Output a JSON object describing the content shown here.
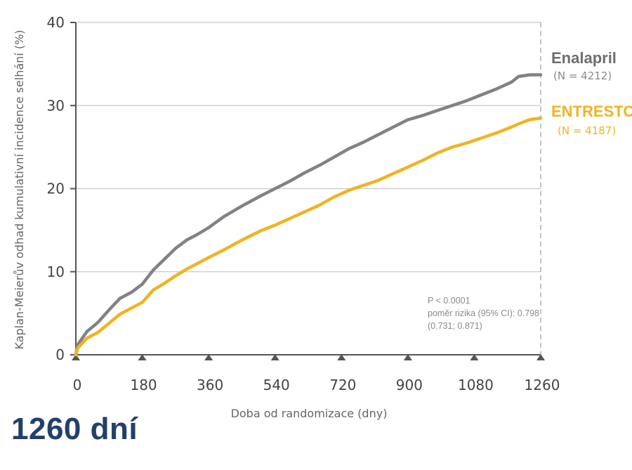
{
  "chart_data": {
    "type": "line",
    "xlabel": "Doba od randomizace (dny)",
    "ylabel": "Kaplan-Meierův odhad kumulativní incidence selhání (%)",
    "xlim": [
      0,
      1260
    ],
    "ylim": [
      0,
      40
    ],
    "x_ticks": [
      "0",
      "180",
      "360",
      "540",
      "720",
      "900",
      "1080",
      "1260"
    ],
    "y_ticks": [
      "0",
      "10",
      "20",
      "30",
      "40"
    ],
    "grid": "horizontal",
    "legend_placement": "right, inline labels at line ends",
    "series": [
      {
        "name": "Enalapril",
        "n_label": "(N = 4212)",
        "color": "#808285",
        "x": [
          0,
          5,
          30,
          60,
          90,
          120,
          150,
          180,
          210,
          240,
          270,
          300,
          330,
          360,
          400,
          450,
          500,
          540,
          580,
          620,
          660,
          700,
          740,
          780,
          820,
          860,
          900,
          940,
          980,
          1020,
          1060,
          1100,
          1140,
          1180,
          1200,
          1230,
          1260
        ],
        "values": [
          0,
          1.2,
          2.8,
          3.9,
          5.4,
          6.8,
          7.5,
          8.5,
          10.2,
          11.5,
          12.8,
          13.8,
          14.5,
          15.3,
          16.6,
          17.9,
          19.1,
          20.0,
          20.9,
          21.9,
          22.8,
          23.8,
          24.8,
          25.6,
          26.5,
          27.4,
          28.3,
          28.8,
          29.4,
          30.0,
          30.6,
          31.3,
          32.0,
          32.8,
          33.5,
          33.7,
          33.7
        ]
      },
      {
        "name": "ENTRESTO™",
        "n_label": "(N = 4187)",
        "color": "#f0b323",
        "x": [
          0,
          5,
          30,
          60,
          90,
          120,
          150,
          180,
          210,
          240,
          270,
          300,
          330,
          360,
          400,
          450,
          500,
          540,
          580,
          620,
          660,
          700,
          740,
          780,
          820,
          860,
          900,
          940,
          980,
          1020,
          1060,
          1100,
          1140,
          1180,
          1200,
          1230,
          1260
        ],
        "values": [
          0,
          0.8,
          2.0,
          2.7,
          3.8,
          4.9,
          5.6,
          6.3,
          7.8,
          8.6,
          9.5,
          10.3,
          11.0,
          11.7,
          12.6,
          13.8,
          14.9,
          15.6,
          16.4,
          17.2,
          18.0,
          19.0,
          19.8,
          20.4,
          21.0,
          21.8,
          22.6,
          23.4,
          24.3,
          25.0,
          25.5,
          26.1,
          26.7,
          27.4,
          27.8,
          28.3,
          28.5
        ]
      }
    ],
    "annotations": {
      "p_value": "P < 0.0001",
      "hazard_ratio": "poměr rizika (95% CI): 0.798",
      "ci": "(0.731; 0.871)"
    }
  },
  "caption": "1260 dní"
}
